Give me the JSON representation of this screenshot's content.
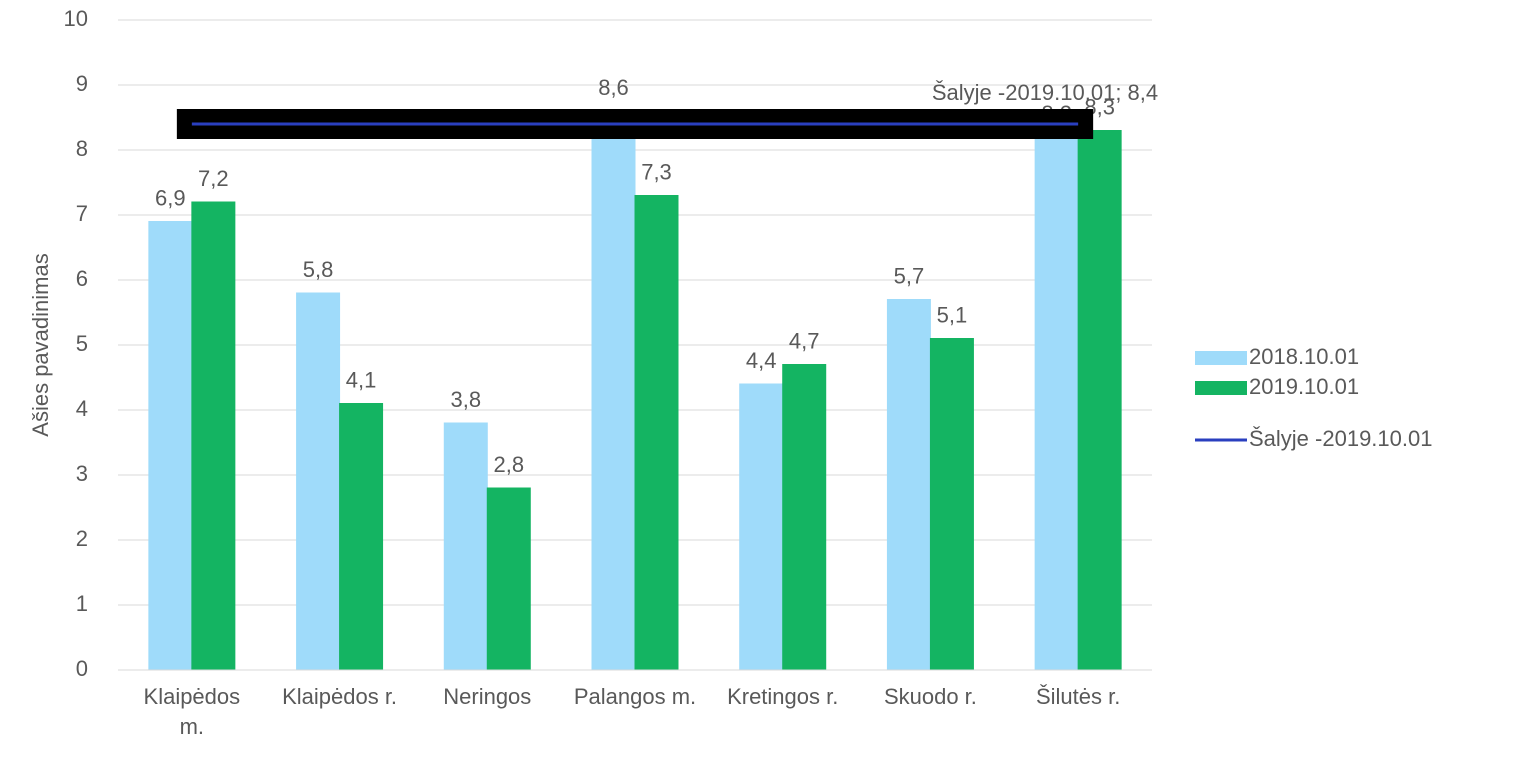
{
  "chart_data": {
    "type": "bar",
    "y_label": "Ašies pavadinimas",
    "categories": [
      "Klaipėdos m.",
      "Klaipėdos r.",
      "Neringos",
      "Palangos m.",
      "Kretingos r.",
      "Skuodo r.",
      "Šilutės r."
    ],
    "series": [
      {
        "name": "2018.10.01",
        "color": "#9fdbfa",
        "type": "bar",
        "values": [
          6.9,
          5.8,
          3.8,
          8.6,
          4.4,
          5.7,
          8.2
        ],
        "value_labels": [
          "6,9",
          "5,8",
          "3,8",
          "8,6",
          "4,4",
          "5,7",
          "8,2"
        ]
      },
      {
        "name": "2019.10.01",
        "color": "#14b462",
        "type": "bar",
        "values": [
          7.2,
          4.1,
          2.8,
          7.3,
          4.7,
          5.1,
          8.3
        ],
        "value_labels": [
          "7,2",
          "4,1",
          "2,8",
          "7,3",
          "4,7",
          "5,1",
          "8,3"
        ]
      },
      {
        "name": "Šalyje -2019.10.01",
        "color": "#2a3fbf",
        "type": "line",
        "values": [
          8.4,
          8.4,
          8.4,
          8.4,
          8.4,
          8.4,
          8.4
        ],
        "value_labels": [
          null,
          null,
          null,
          null,
          null,
          null,
          "Šalyje -2019.10.01; 8,4"
        ]
      }
    ],
    "ylim": [
      0,
      10
    ],
    "yticks": [
      0,
      1,
      2,
      3,
      4,
      5,
      6,
      7,
      8,
      9,
      10
    ],
    "grid": true,
    "legend": "right"
  }
}
